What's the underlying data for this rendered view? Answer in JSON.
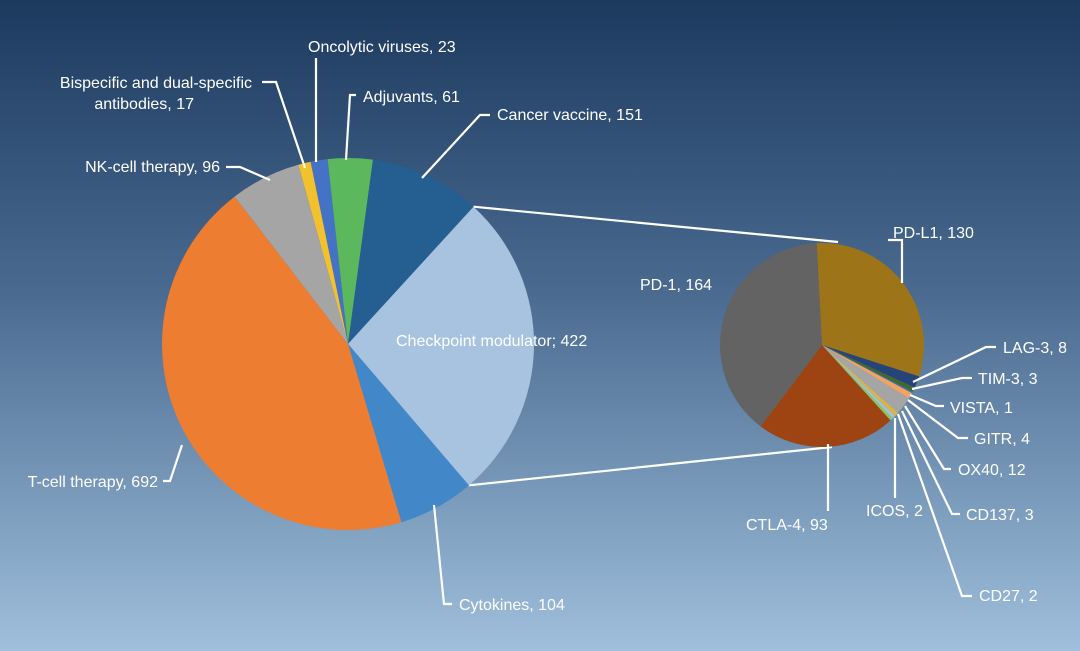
{
  "chart_data": [
    {
      "type": "pie",
      "title": "",
      "slices": [
        {
          "label": "Bispecific and dual-specific antibodies, 17",
          "value": 17,
          "color": "#f2c12e"
        },
        {
          "label": "Oncolytic viruses, 23",
          "value": 23,
          "color": "#4472c4"
        },
        {
          "label": "Adjuvants, 61",
          "value": 61,
          "color": "#5cb85c"
        },
        {
          "label": "Cancer vaccine, 151",
          "value": 151,
          "color": "#255e91"
        },
        {
          "label": "Checkpoint modulator; 422",
          "value": 422,
          "color": "#a7c3e0"
        },
        {
          "label": "Cytokines, 104",
          "value": 104,
          "color": "#4288c9"
        },
        {
          "label": "T-cell therapy, 692",
          "value": 692,
          "color": "#ed7d31"
        },
        {
          "label": "NK-cell therapy, 96",
          "value": 96,
          "color": "#a5a5a5"
        }
      ]
    },
    {
      "type": "pie",
      "title": "",
      "slices": [
        {
          "label": "PD-L1, 130",
          "value": 130,
          "color": "#9e7418"
        },
        {
          "label": "LAG-3, 8",
          "value": 8,
          "color": "#264478"
        },
        {
          "label": "TIM-3, 3",
          "value": 3,
          "color": "#43682b"
        },
        {
          "label": "VISTA, 1",
          "value": 1,
          "color": "#2f75b5"
        },
        {
          "label": "GITR, 4",
          "value": 4,
          "color": "#f4a261"
        },
        {
          "label": "OX40, 12",
          "value": 12,
          "color": "#a5a5a5"
        },
        {
          "label": "CD137, 3",
          "value": 3,
          "color": "#d9b44a"
        },
        {
          "label": "CD27, 2",
          "value": 2,
          "color": "#9dc3e6"
        },
        {
          "label": "ICOS, 2",
          "value": 2,
          "color": "#8fc55a"
        },
        {
          "label": "CTLA-4, 93",
          "value": 93,
          "color": "#9e4413"
        },
        {
          "label": "PD-1, 164",
          "value": 164,
          "color": "#636363"
        }
      ]
    }
  ]
}
